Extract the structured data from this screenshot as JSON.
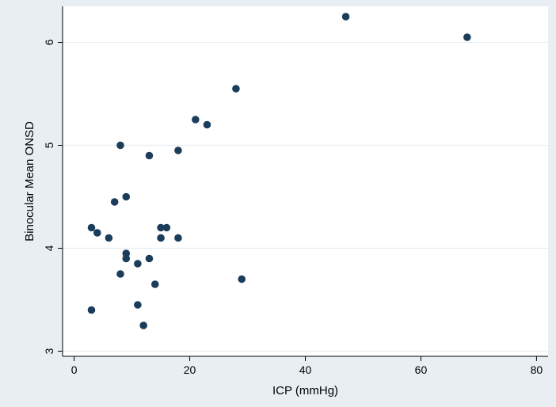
{
  "chart_data": {
    "type": "scatter",
    "title": "",
    "xlabel": "ICP (mmHg)",
    "ylabel": "Binocular Mean ONSD",
    "xlim": [
      -2,
      82
    ],
    "ylim": [
      2.95,
      6.35
    ],
    "xticks": [
      0,
      20,
      40,
      60,
      80
    ],
    "yticks": [
      3,
      4,
      5,
      6
    ],
    "grid": "horizontal",
    "legend": "none",
    "colors": {
      "plot_background": "#ffffff",
      "outer_background": "#e8eef2",
      "marker": "#1c3d5a",
      "grid": "#e8eef2",
      "axis": "#000000"
    },
    "points": [
      {
        "x": 3,
        "y": 3.4
      },
      {
        "x": 3,
        "y": 4.2
      },
      {
        "x": 4,
        "y": 4.15
      },
      {
        "x": 6,
        "y": 4.1
      },
      {
        "x": 7,
        "y": 4.45
      },
      {
        "x": 8,
        "y": 5.0
      },
      {
        "x": 8,
        "y": 3.75
      },
      {
        "x": 9,
        "y": 4.5
      },
      {
        "x": 9,
        "y": 3.95
      },
      {
        "x": 9,
        "y": 3.9
      },
      {
        "x": 11,
        "y": 3.85
      },
      {
        "x": 11,
        "y": 3.45
      },
      {
        "x": 12,
        "y": 3.25
      },
      {
        "x": 13,
        "y": 4.9
      },
      {
        "x": 13,
        "y": 3.9
      },
      {
        "x": 14,
        "y": 3.65
      },
      {
        "x": 15,
        "y": 4.2
      },
      {
        "x": 15,
        "y": 4.1
      },
      {
        "x": 16,
        "y": 4.2
      },
      {
        "x": 18,
        "y": 4.95
      },
      {
        "x": 18,
        "y": 4.1
      },
      {
        "x": 21,
        "y": 5.25
      },
      {
        "x": 23,
        "y": 5.2
      },
      {
        "x": 28,
        "y": 5.55
      },
      {
        "x": 29,
        "y": 3.7
      },
      {
        "x": 47,
        "y": 6.25
      },
      {
        "x": 68,
        "y": 6.05
      }
    ]
  }
}
